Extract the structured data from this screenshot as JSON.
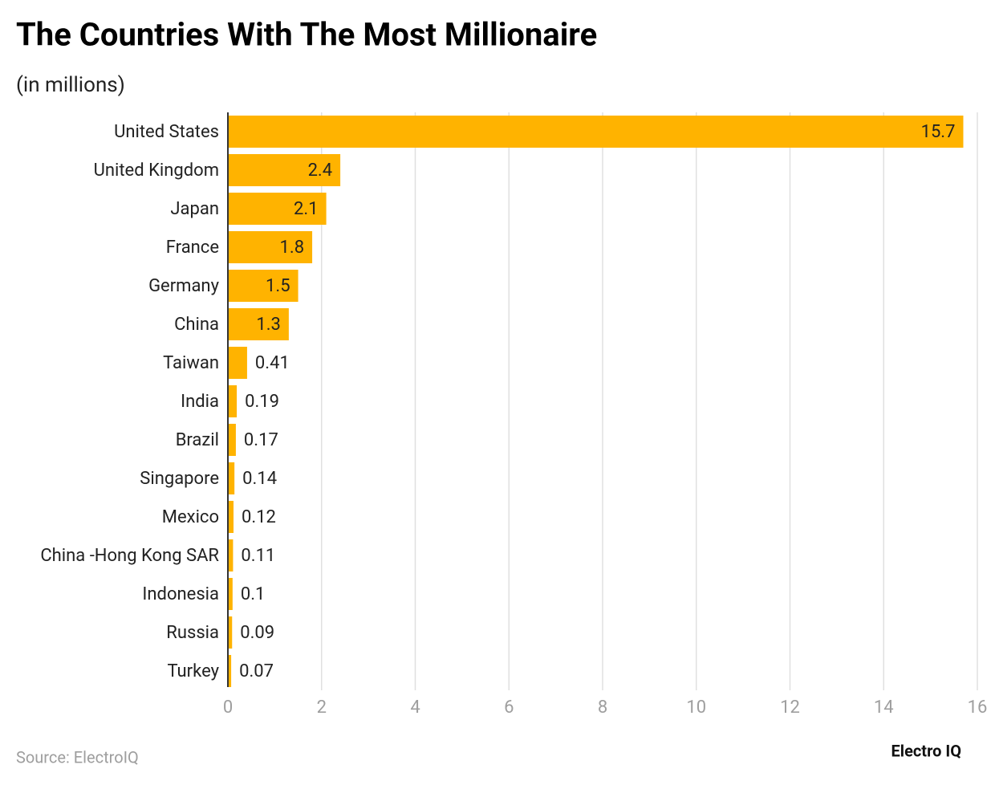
{
  "chart_data": {
    "type": "bar",
    "orientation": "horizontal",
    "title": "The Countries With The Most Millionaire",
    "subtitle": "(in millions)",
    "categories": [
      "United States",
      "United Kingdom",
      "Japan",
      "France",
      "Germany",
      "China",
      "Taiwan",
      "India",
      "Brazil",
      "Singapore",
      "Mexico",
      "China -Hong Kong SAR",
      "Indonesia",
      "Russia",
      "Turkey"
    ],
    "values": [
      15.7,
      2.4,
      2.1,
      1.8,
      1.5,
      1.3,
      0.41,
      0.19,
      0.17,
      0.14,
      0.12,
      0.11,
      0.1,
      0.09,
      0.07
    ],
    "color": "#ffb300",
    "xlim": [
      0,
      16
    ],
    "xticks": [
      0,
      2,
      4,
      6,
      8,
      10,
      12,
      14,
      16
    ],
    "grid": true,
    "source": "Source: ElectroIQ",
    "brand": "Electro IQ"
  }
}
